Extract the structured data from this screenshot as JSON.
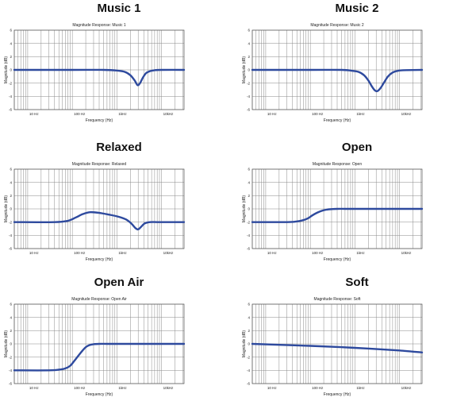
{
  "chart_data": [
    {
      "type": "line",
      "panel_title": "Music 1",
      "title": "Magnitude Response: Music 1",
      "xlabel": "Frequency (Hz)",
      "ylabel": "Magnitude (dB)",
      "xscale": "log",
      "xlim": [
        5,
        32000
      ],
      "ylim": [
        -6,
        6
      ],
      "x_tick_labels": [
        {
          "value": 10,
          "label": "10 Hz"
        },
        {
          "value": 100,
          "label": "100 Hz"
        },
        {
          "value": 1000,
          "label": "1kHz"
        },
        {
          "value": 10000,
          "label": "10kHz"
        }
      ],
      "y_ticks": [
        6,
        4,
        2,
        0,
        -2,
        -4,
        -6
      ],
      "grid": true,
      "series": [
        {
          "color": "#2e4a9e",
          "x": [
            5,
            100,
            500,
            1000,
            1500,
            2000,
            2500,
            2900,
            3300,
            3800,
            4500,
            5500,
            7000,
            10000,
            32000
          ],
          "y": [
            0,
            0,
            0,
            -0.1,
            -0.3,
            -0.8,
            -1.6,
            -2.3,
            -2.0,
            -1.2,
            -0.5,
            -0.2,
            -0.05,
            0,
            0
          ]
        }
      ]
    },
    {
      "type": "line",
      "panel_title": "Music 2",
      "title": "Magnitude Response: Music 2",
      "xlabel": "Frequency (Hz)",
      "ylabel": "Magnitude (dB)",
      "xscale": "log",
      "xlim": [
        5,
        32000
      ],
      "ylim": [
        -6,
        6
      ],
      "x_tick_labels": [
        {
          "value": 10,
          "label": "10 Hz"
        },
        {
          "value": 100,
          "label": "100 Hz"
        },
        {
          "value": 1000,
          "label": "1kHz"
        },
        {
          "value": 10000,
          "label": "10kHz"
        }
      ],
      "y_ticks": [
        6,
        4,
        2,
        0,
        -2,
        -4,
        -6
      ],
      "grid": true,
      "series": [
        {
          "color": "#2e4a9e",
          "x": [
            5,
            100,
            500,
            800,
            1200,
            1600,
            2000,
            2400,
            2800,
            3200,
            3800,
            4500,
            5500,
            7000,
            9000,
            12000,
            32000
          ],
          "y": [
            0,
            0,
            0,
            -0.1,
            -0.3,
            -0.8,
            -1.6,
            -2.5,
            -3.1,
            -3.2,
            -2.7,
            -1.9,
            -1.0,
            -0.4,
            -0.15,
            -0.05,
            0
          ]
        }
      ]
    },
    {
      "type": "line",
      "panel_title": "Relaxed",
      "title": "Magnitude Response: Relaxed",
      "xlabel": "Frequency (Hz)",
      "ylabel": "Magnitude (dB)",
      "xscale": "log",
      "xlim": [
        5,
        32000
      ],
      "ylim": [
        -6,
        6
      ],
      "x_tick_labels": [
        {
          "value": 10,
          "label": "10 Hz"
        },
        {
          "value": 100,
          "label": "100 Hz"
        },
        {
          "value": 1000,
          "label": "1kHz"
        },
        {
          "value": 10000,
          "label": "10kHz"
        }
      ],
      "y_ticks": [
        6,
        4,
        2,
        0,
        -2,
        -4,
        -6
      ],
      "grid": true,
      "series": [
        {
          "color": "#2e4a9e",
          "x": [
            5,
            40,
            80,
            120,
            170,
            250,
            400,
            700,
            1100,
            1600,
            2100,
            2600,
            3000,
            3500,
            4200,
            5500,
            8000,
            15000,
            32000
          ],
          "y": [
            -2,
            -2,
            -1.8,
            -1.3,
            -0.8,
            -0.5,
            -0.6,
            -0.9,
            -1.2,
            -1.6,
            -2.2,
            -2.9,
            -3.1,
            -2.7,
            -2.2,
            -2.0,
            -2.0,
            -2.0,
            -2.0
          ]
        }
      ]
    },
    {
      "type": "line",
      "panel_title": "Open",
      "title": "Magnitude Response: Open",
      "xlabel": "Frequency (Hz)",
      "ylabel": "Magnitude (dB)",
      "xscale": "log",
      "xlim": [
        5,
        32000
      ],
      "ylim": [
        -6,
        6
      ],
      "x_tick_labels": [
        {
          "value": 10,
          "label": "10 Hz"
        },
        {
          "value": 100,
          "label": "100 Hz"
        },
        {
          "value": 1000,
          "label": "1kHz"
        },
        {
          "value": 10000,
          "label": "10kHz"
        }
      ],
      "y_ticks": [
        6,
        4,
        2,
        0,
        -2,
        -4,
        -6
      ],
      "grid": true,
      "series": [
        {
          "color": "#2e4a9e",
          "x": [
            5,
            30,
            50,
            70,
            90,
            110,
            140,
            180,
            230,
            300,
            400,
            600,
            1000,
            5000,
            32000
          ],
          "y": [
            -2,
            -2,
            -1.9,
            -1.7,
            -1.4,
            -1.0,
            -0.6,
            -0.3,
            -0.12,
            -0.04,
            0,
            0,
            0,
            0,
            0
          ]
        }
      ]
    },
    {
      "type": "line",
      "panel_title": "Open Air",
      "title": "Magnitude Response: Open Air",
      "xlabel": "Frequency (Hz)",
      "ylabel": "Magnitude (dB)",
      "xscale": "log",
      "xlim": [
        5,
        32000
      ],
      "ylim": [
        -6,
        6
      ],
      "x_tick_labels": [
        {
          "value": 10,
          "label": "10 Hz"
        },
        {
          "value": 100,
          "label": "100 Hz"
        },
        {
          "value": 1000,
          "label": "1kHz"
        },
        {
          "value": 10000,
          "label": "10kHz"
        }
      ],
      "y_ticks": [
        6,
        4,
        2,
        0,
        -2,
        -4,
        -6
      ],
      "grid": true,
      "series": [
        {
          "color": "#2e4a9e",
          "x": [
            5,
            30,
            50,
            70,
            90,
            110,
            140,
            170,
            200,
            240,
            300,
            400,
            600,
            1000,
            5000,
            32000
          ],
          "y": [
            -4,
            -4,
            -3.9,
            -3.7,
            -3.3,
            -2.6,
            -1.7,
            -1.0,
            -0.5,
            -0.2,
            -0.05,
            0,
            0,
            0,
            0,
            0
          ]
        }
      ]
    },
    {
      "type": "line",
      "panel_title": "Soft",
      "title": "Magnitude Response: Soft",
      "xlabel": "Frequency (Hz)",
      "ylabel": "Magnitude (dB)",
      "xscale": "log",
      "xlim": [
        5,
        32000
      ],
      "ylim": [
        -6,
        6
      ],
      "x_tick_labels": [
        {
          "value": 10,
          "label": "10 Hz"
        },
        {
          "value": 100,
          "label": "100 Hz"
        },
        {
          "value": 1000,
          "label": "1kHz"
        },
        {
          "value": 10000,
          "label": "10kHz"
        }
      ],
      "y_ticks": [
        6,
        4,
        2,
        0,
        -2,
        -4,
        -6
      ],
      "grid": true,
      "series": [
        {
          "color": "#2e4a9e",
          "x": [
            5,
            100,
            1000,
            10000,
            32000
          ],
          "y": [
            0,
            -0.3,
            -0.6,
            -1.0,
            -1.3
          ]
        }
      ]
    }
  ]
}
